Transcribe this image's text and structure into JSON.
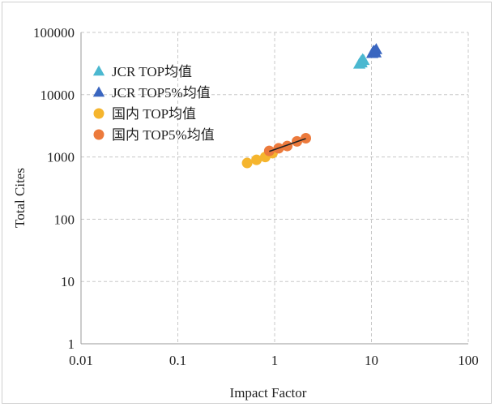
{
  "chart_data": {
    "type": "scatter",
    "title": "",
    "xlabel": "Impact Factor",
    "ylabel": "Total Cites",
    "x_scale": "log",
    "y_scale": "log",
    "xlim": [
      0.01,
      100
    ],
    "ylim": [
      1,
      100000
    ],
    "x_ticks": [
      "0.01",
      "0.1",
      "1",
      "10",
      "100"
    ],
    "y_ticks": [
      "1",
      "10",
      "100",
      "1000",
      "10000",
      "100000"
    ],
    "grid": true,
    "legend_position": "top-left",
    "series": [
      {
        "name": "JCR TOP均值",
        "marker": "triangle",
        "color": "#4bb8d0",
        "points": [
          [
            7.5,
            31000
          ],
          [
            7.8,
            34000
          ],
          [
            8.1,
            36500
          ],
          [
            7.9,
            32500
          ],
          [
            8.3,
            35500
          ]
        ],
        "trendline": false
      },
      {
        "name": "JCR TOP5%均值",
        "marker": "triangle",
        "color": "#3a66c0",
        "points": [
          [
            10.2,
            46000
          ],
          [
            10.8,
            49000
          ],
          [
            11.2,
            53000
          ],
          [
            11.0,
            47000
          ],
          [
            10.5,
            50000
          ]
        ],
        "trendline": false
      },
      {
        "name": "国内 TOP均值",
        "marker": "circle",
        "color": "#f5b52e",
        "points": [
          [
            0.52,
            800
          ],
          [
            0.65,
            900
          ],
          [
            0.8,
            1000
          ],
          [
            0.95,
            1150
          ]
        ],
        "trendline": false
      },
      {
        "name": "国内 TOP5%均值",
        "marker": "circle",
        "color": "#ec7a3c",
        "points": [
          [
            0.88,
            1250
          ],
          [
            1.1,
            1380
          ],
          [
            1.35,
            1500
          ],
          [
            1.7,
            1780
          ],
          [
            2.1,
            2000
          ]
        ],
        "trendline": true,
        "trendline_color": "#222222"
      }
    ]
  }
}
